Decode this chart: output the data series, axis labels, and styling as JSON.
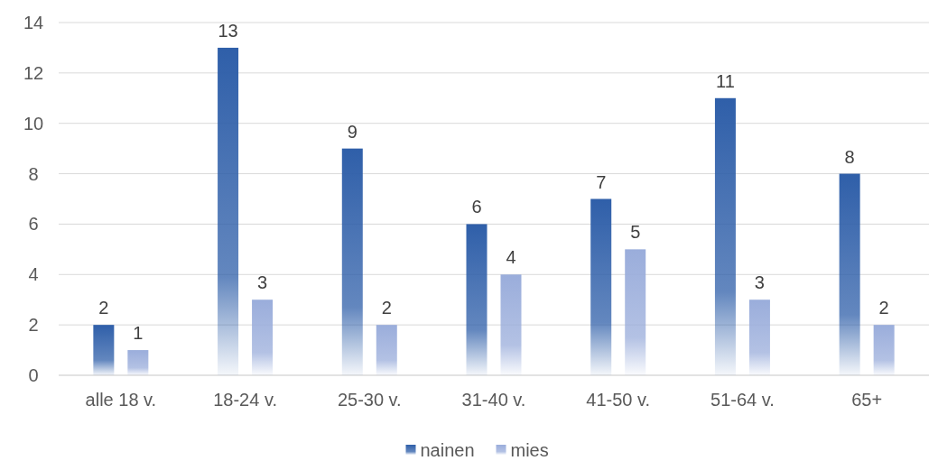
{
  "chart_data": {
    "type": "bar",
    "categories": [
      "alle 18 v.",
      "18-24 v.",
      "25-30 v.",
      "31-40 v.",
      "41-50 v.",
      "51-64 v.",
      "65+"
    ],
    "series": [
      {
        "name": "nainen",
        "color": "#2f5fa9",
        "values": [
          2,
          13,
          9,
          6,
          7,
          11,
          8
        ]
      },
      {
        "name": "mies",
        "color": "#9aaddb",
        "values": [
          1,
          3,
          2,
          4,
          5,
          3,
          2
        ]
      }
    ],
    "ylim": [
      0,
      14
    ],
    "yticks": [
      0,
      2,
      4,
      6,
      8,
      10,
      12,
      14
    ],
    "grid": "y",
    "legend": "bottom",
    "data_labels": true
  }
}
